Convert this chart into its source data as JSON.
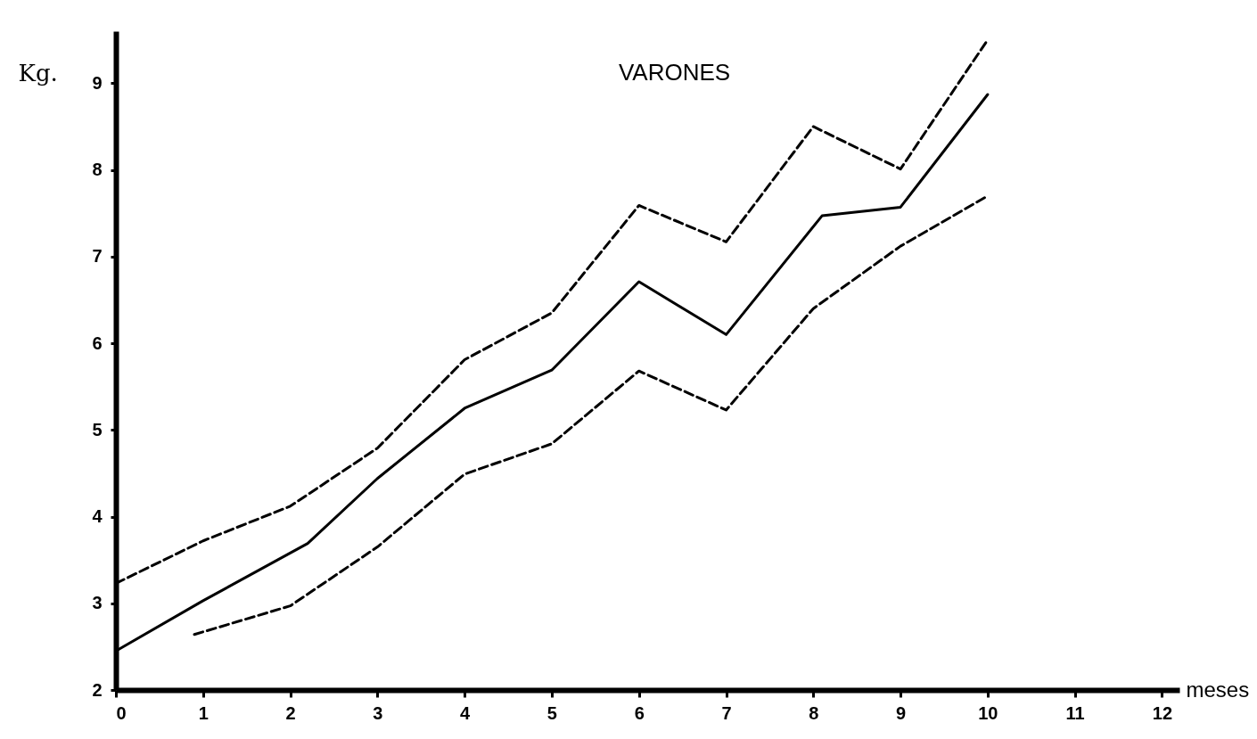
{
  "chart_data": {
    "type": "line",
    "title": "VARONES",
    "xlabel": "meses",
    "ylabel": "Kg.",
    "xlim": [
      0,
      12.2
    ],
    "ylim": [
      2,
      9.6
    ],
    "xticks": [
      0,
      1,
      2,
      3,
      4,
      5,
      6,
      7,
      8,
      9,
      10,
      11,
      12
    ],
    "yticks": [
      2,
      3,
      4,
      5,
      6,
      7,
      8,
      9
    ],
    "grid": false,
    "marker": "none",
    "series": [
      {
        "color": "#000000",
        "line_style": "dashed",
        "x": [
          0,
          1,
          2,
          3,
          4,
          5,
          6,
          7,
          8,
          9,
          10
        ],
        "values": [
          3.23,
          3.72,
          4.12,
          4.79,
          5.81,
          6.35,
          7.59,
          7.17,
          8.5,
          8.01,
          9.5
        ]
      },
      {
        "color": "#000000",
        "line_style": "solid",
        "x": [
          0,
          1,
          2.2,
          3,
          4,
          5,
          6,
          7,
          8.1,
          9,
          10
        ],
        "values": [
          2.45,
          3.03,
          3.69,
          4.44,
          5.25,
          5.69,
          6.71,
          6.1,
          7.47,
          7.57,
          8.87
        ]
      },
      {
        "color": "#000000",
        "line_style": "dashed",
        "x": [
          0.9,
          2,
          3,
          4,
          5,
          6,
          7,
          8,
          9,
          10
        ],
        "values": [
          2.64,
          2.97,
          3.65,
          4.49,
          4.84,
          5.68,
          5.23,
          6.4,
          7.12,
          7.7
        ]
      }
    ]
  }
}
